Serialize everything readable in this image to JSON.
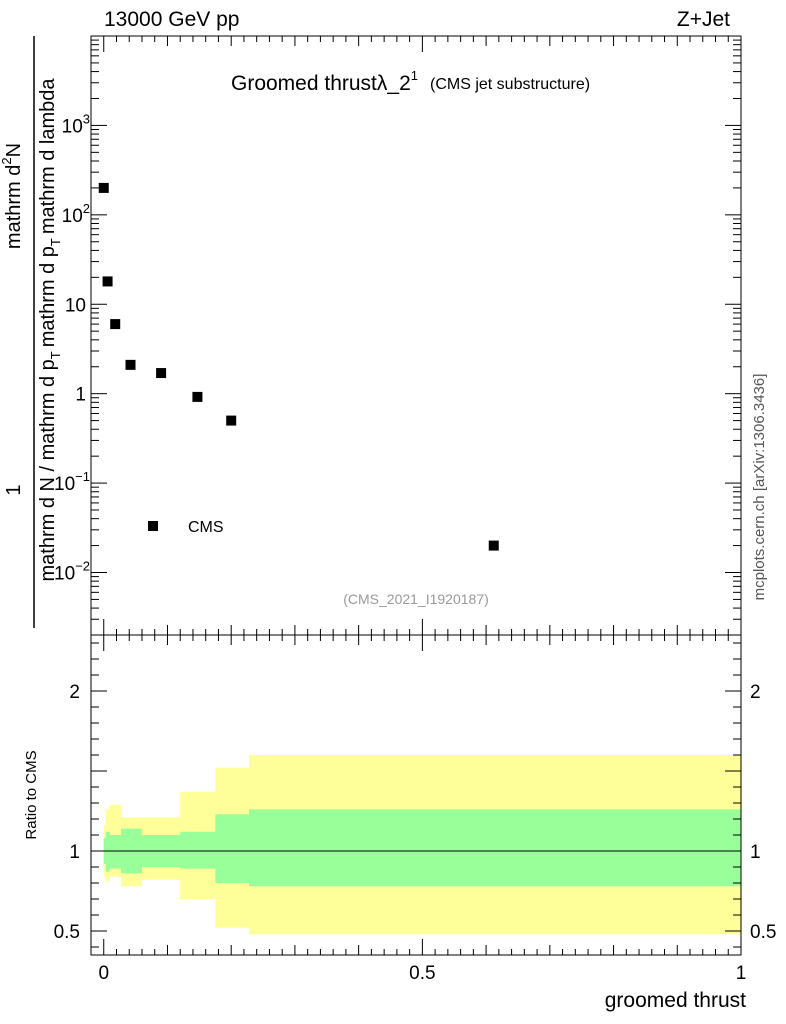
{
  "header": {
    "energy_label": "13000 GeV pp",
    "process_label": "Z+Jet"
  },
  "side_label": "mcplots.cern.ch [arXiv:1306.3436]",
  "chart_data": [
    {
      "type": "scatter",
      "title_main": "Groomed thrust",
      "title_lambda": "λ_2",
      "title_sup": "1",
      "title_sub": "(CMS jet substructure)",
      "analysis_id": "(CMS_2021_I1920187)",
      "ylabel_numer": "1",
      "ylabel_denom": "mathrm d N / mathrm d p",
      "ylabel_denom_sub": "T",
      "ylabel_denom_tail": "mathrm d p",
      "ylabel_denom_sub2": "T",
      "ylabel_denom_end": "mathrm d lambda",
      "ylabel_right_numer": "mathrm d",
      "ylabel_right_numer_sup": "2",
      "ylabel_right_numer_end": "N",
      "yscale": "log",
      "ylim": [
        0.002,
        10000
      ],
      "xlim": [
        -0.02,
        1.0
      ],
      "yticks": [
        {
          "value": 0.01,
          "base": "10",
          "exp": "−2"
        },
        {
          "value": 0.1,
          "base": "10",
          "exp": "−1"
        },
        {
          "value": 1,
          "base": "1",
          "exp": ""
        },
        {
          "value": 10,
          "base": "10",
          "exp": ""
        },
        {
          "value": 100,
          "base": "10",
          "exp": "2"
        },
        {
          "value": 1000,
          "base": "10",
          "exp": "3"
        }
      ],
      "series": [
        {
          "name": "CMS",
          "marker": "square",
          "color": "#000000",
          "x": [
            0.0,
            0.006,
            0.018,
            0.042,
            0.09,
            0.147,
            0.2,
            0.612
          ],
          "y": [
            200,
            18,
            6,
            2.1,
            1.7,
            0.92,
            0.5,
            0.02
          ]
        }
      ],
      "legend": {
        "position": "lower-left",
        "label": "CMS"
      }
    },
    {
      "type": "area",
      "ylabel": "Ratio to CMS",
      "xlabel": "groomed thrust",
      "ylim": [
        0.35,
        2.35
      ],
      "xlim": [
        -0.02,
        1.0
      ],
      "xticks": [
        {
          "value": 0,
          "label": "0"
        },
        {
          "value": 0.5,
          "label": "0.5"
        },
        {
          "value": 1,
          "label": "1"
        }
      ],
      "yticks": [
        {
          "value": 0.5,
          "label": "0.5"
        },
        {
          "value": 1,
          "label": "1"
        },
        {
          "value": 2,
          "label": "2"
        }
      ],
      "reference_line": 1,
      "bins": [
        0,
        0.003,
        0.009,
        0.027,
        0.06,
        0.12,
        0.175,
        0.228,
        1.0
      ],
      "inner_band_lo": [
        0.92,
        0.87,
        0.89,
        0.86,
        0.9,
        0.89,
        0.8,
        0.78
      ],
      "inner_band_hi": [
        1.08,
        1.12,
        1.1,
        1.14,
        1.1,
        1.12,
        1.23,
        1.26
      ],
      "outer_band_lo": [
        0.84,
        0.81,
        0.84,
        0.78,
        0.82,
        0.7,
        0.52,
        0.48
      ],
      "outer_band_hi": [
        1.16,
        1.26,
        1.29,
        1.21,
        1.21,
        1.37,
        1.52,
        1.6
      ],
      "inner_color": "#99ff99",
      "outer_color": "#ffff99"
    }
  ]
}
